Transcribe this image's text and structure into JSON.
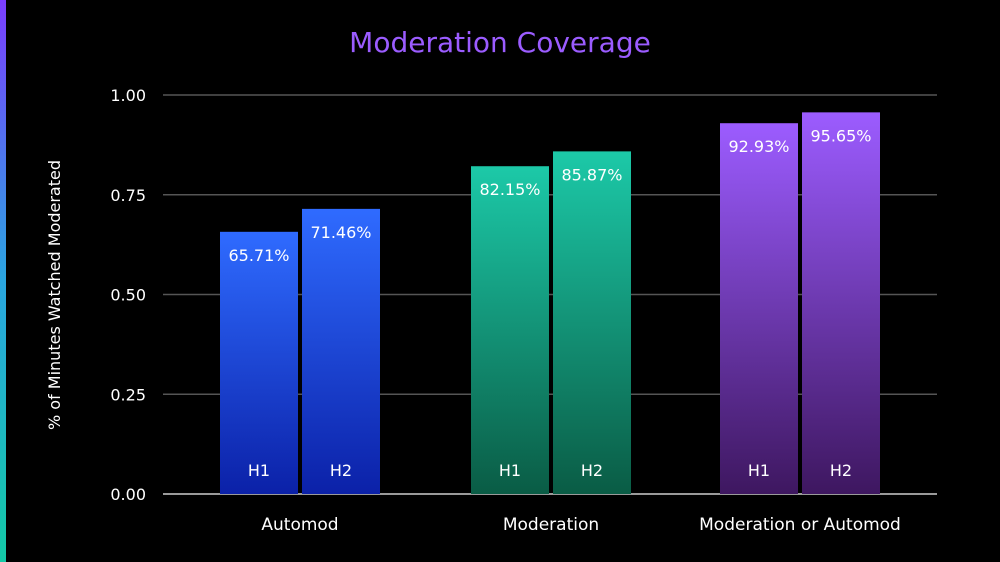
{
  "chart_data": {
    "type": "bar",
    "title": "Moderation Coverage",
    "ylabel": "% of Minutes Watched Moderated",
    "xlabel": "",
    "ylim": [
      0,
      1
    ],
    "yticks": [
      "0.00",
      "0.25",
      "0.50",
      "0.75",
      "1.00"
    ],
    "grid": true,
    "categories": [
      "Automod",
      "Moderation",
      "Moderation or Automod"
    ],
    "series": [
      {
        "name": "H1",
        "values": [
          0.6571,
          0.8215,
          0.9293
        ]
      },
      {
        "name": "H2",
        "values": [
          0.7146,
          0.8587,
          0.9565
        ]
      }
    ],
    "data_labels": [
      [
        "65.71%",
        "71.46%"
      ],
      [
        "82.15%",
        "85.87%"
      ],
      [
        "92.93%",
        "95.65%"
      ]
    ]
  },
  "colors": {
    "background": "#000000",
    "title": "#9b5cff",
    "grid": "#555555",
    "axis": "#9a9a9a",
    "category_gradients": [
      {
        "top": "#2f6bff",
        "bottom": "#0b21a8"
      },
      {
        "top": "#1cc9a8",
        "bottom": "#0a5c45"
      },
      {
        "top": "#9c5cff",
        "bottom": "#3e1760"
      }
    ],
    "accent_bar": [
      "#7b3dff",
      "#2aa6e0",
      "#13c9a6"
    ]
  }
}
